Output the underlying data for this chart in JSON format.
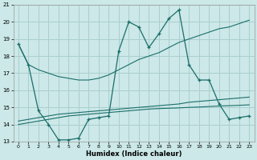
{
  "xlabel": "Humidex (Indice chaleur)",
  "xlim": [
    -0.5,
    23.5
  ],
  "ylim": [
    13,
    21
  ],
  "yticks": [
    13,
    14,
    15,
    16,
    17,
    18,
    19,
    20,
    21
  ],
  "xticks": [
    0,
    1,
    2,
    3,
    4,
    5,
    6,
    7,
    8,
    9,
    10,
    11,
    12,
    13,
    14,
    15,
    16,
    17,
    18,
    19,
    20,
    21,
    22,
    23
  ],
  "background_color": "#cce8e8",
  "grid_color": "#aacece",
  "line_color": "#1a6e6a",
  "line1_y": [
    18.7,
    17.5,
    17.2,
    17.0,
    16.8,
    16.7,
    16.6,
    16.6,
    16.7,
    16.9,
    17.2,
    17.5,
    17.8,
    18.0,
    18.2,
    18.5,
    18.8,
    19.0,
    19.2,
    19.4,
    19.6,
    19.7,
    19.9,
    20.1
  ],
  "line2_y": [
    14.2,
    14.3,
    14.4,
    14.5,
    14.6,
    14.65,
    14.7,
    14.75,
    14.8,
    14.85,
    14.9,
    14.95,
    15.0,
    15.05,
    15.1,
    15.15,
    15.2,
    15.3,
    15.35,
    15.4,
    15.45,
    15.5,
    15.55,
    15.6
  ],
  "line3_y": [
    14.0,
    14.1,
    14.2,
    14.3,
    14.4,
    14.5,
    14.55,
    14.6,
    14.65,
    14.7,
    14.75,
    14.8,
    14.85,
    14.9,
    14.93,
    14.95,
    14.97,
    15.0,
    15.02,
    15.05,
    15.08,
    15.1,
    15.12,
    15.15
  ],
  "main_y": [
    18.7,
    17.5,
    14.8,
    14.0,
    13.1,
    13.1,
    13.2,
    14.3,
    14.4,
    14.5,
    18.3,
    20.0,
    19.7,
    18.5,
    19.3,
    20.2,
    20.7,
    17.5,
    16.6,
    16.6,
    15.2,
    14.3,
    14.4,
    14.5
  ]
}
